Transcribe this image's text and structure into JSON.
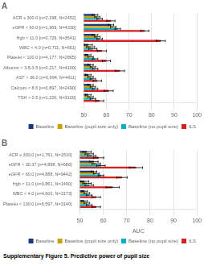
{
  "chart_data": [
    {
      "type": "bar",
      "orientation": "horizontal",
      "title": "A",
      "categories": [
        "ACR ≥ 300.0 [n=2,198, N=2452]",
        "eGFR < 60.0 [n=1,969, N=4330]",
        "Hgb < 11.0 [n=0,729, N=3541]",
        "WBC < 4.0 [n=0,711, N=661]",
        "Platelet < 100.0 [n=4,177, N=2865]",
        "Albumin < 3.5-3.5 [n=0,217, N=4100]",
        "AST > 36.0 [n=0,994, N=4411]",
        "Calcium < 8.6 [n=0,897, N=2490]",
        "TSH < 0.5 [n=1,226, N=3100]"
      ],
      "series": [
        {
          "name": "Baseline",
          "color": "#1a3a7a",
          "values": [
            55,
            62,
            55,
            52,
            52,
            53,
            52,
            53,
            52
          ],
          "errors": [
            1.2,
            1.2,
            1.2,
            1.8,
            1.2,
            1.2,
            1.2,
            1.2,
            1.2
          ]
        },
        {
          "name": "Baseline (pupil size only)",
          "color": "#c8a000",
          "values": [
            56,
            63,
            56,
            53,
            53,
            54,
            53,
            54,
            53
          ],
          "errors": [
            1.2,
            1.2,
            1.2,
            1.8,
            1.2,
            1.2,
            1.2,
            1.2,
            1.2
          ]
        },
        {
          "name": "Baseline (no pupil size)",
          "color": "#00b0c8",
          "values": [
            57,
            65,
            57,
            54,
            55,
            55,
            54,
            55,
            54
          ],
          "errors": [
            1.2,
            1.2,
            1.2,
            1.8,
            1.2,
            1.2,
            1.2,
            1.2,
            1.2
          ]
        },
        {
          "name": "ILS",
          "color": "#d42020",
          "values": [
            62,
            77,
            84,
            58,
            60,
            66,
            56,
            61,
            57
          ],
          "errors": [
            1.8,
            1.8,
            2.0,
            2.0,
            1.8,
            2.0,
            1.8,
            2.0,
            1.8
          ]
        }
      ],
      "xlim": [
        50,
        100
      ],
      "xticks": [
        50,
        60,
        70,
        80,
        90,
        100
      ],
      "grid": true,
      "legend": "lower right"
    },
    {
      "type": "bar",
      "orientation": "horizontal",
      "title": "B",
      "categories": [
        "ACR ≥ 300.0 [n=1,761, N=1510]",
        "eGFR < 30.37 [n=4,888, N=680]",
        "eGFR < 60.0 [n=4,888, N=9442]",
        "Hgb < 11.0 [n=0,861, N=1490]",
        "WBC < 4.0 [n=4,600, N=3173]",
        "Platelet < 100.0 [n=6,597, N=3140]"
      ],
      "series": [
        {
          "name": "Baseline",
          "color": "#1a3a7a",
          "values": [
            53,
            56,
            56,
            52,
            52,
            52
          ],
          "errors": [
            1.8,
            1.8,
            1.2,
            1.8,
            1.2,
            1.2
          ]
        },
        {
          "name": "Baseline (pupil size only)",
          "color": "#c8a000",
          "values": [
            54,
            57,
            57,
            53,
            53,
            53
          ],
          "errors": [
            1.8,
            1.8,
            1.2,
            1.8,
            1.2,
            1.2
          ]
        },
        {
          "name": "Baseline (no pupil size)",
          "color": "#00b0c8",
          "values": [
            55,
            59,
            59,
            54,
            54,
            54
          ],
          "errors": [
            1.8,
            1.8,
            1.2,
            1.8,
            1.2,
            1.2
          ]
        },
        {
          "name": "ILS",
          "color": "#d42020",
          "values": [
            58,
            74,
            68,
            64,
            57,
            57
          ],
          "errors": [
            2.2,
            2.8,
            2.2,
            2.8,
            1.8,
            1.8
          ]
        }
      ],
      "xlim": [
        50,
        100
      ],
      "xticks": [
        50,
        60,
        70,
        80,
        90,
        100
      ],
      "grid": true,
      "legend": "lower right",
      "xlabel": "AUC",
      "caption": "Supplementary Figure 5. Predictive power of pupil size"
    }
  ]
}
